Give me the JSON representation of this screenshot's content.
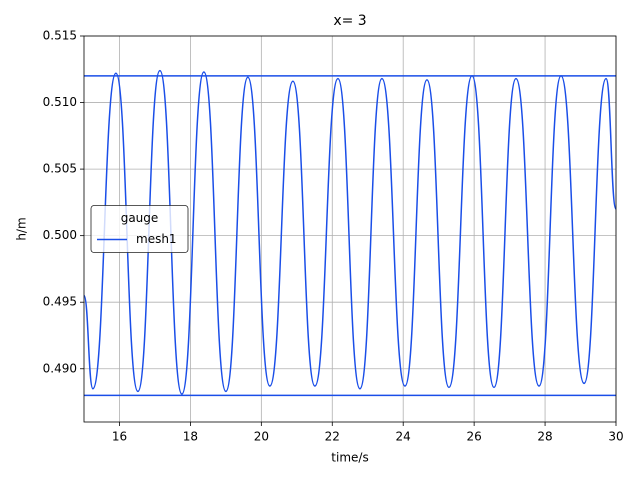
{
  "chart_data": {
    "type": "line",
    "title": "x= 3",
    "xlabel": "time/s",
    "ylabel": "h/m",
    "x": [
      15,
      15.25,
      15.9,
      16.52,
      17.14,
      17.76,
      18.38,
      19.0,
      19.62,
      20.24,
      20.89,
      21.51,
      22.16,
      22.78,
      23.4,
      24.05,
      24.67,
      25.29,
      25.94,
      26.56,
      27.18,
      27.83,
      28.45,
      29.1,
      29.72,
      30
    ],
    "series": [
      {
        "name": "mesh1",
        "color": "#1a4ee8",
        "values": [
          0.4955,
          0.4885,
          0.5122,
          0.4883,
          0.5124,
          0.4881,
          0.5123,
          0.4883,
          0.5119,
          0.4887,
          0.5116,
          0.4887,
          0.5118,
          0.4885,
          0.5118,
          0.4887,
          0.5117,
          0.4886,
          0.512,
          0.4886,
          0.5118,
          0.4887,
          0.512,
          0.4889,
          0.5118,
          0.502
        ]
      }
    ],
    "hlines": [
      0.512,
      0.488
    ],
    "xlim": [
      15,
      30
    ],
    "xticks": [
      16,
      18,
      20,
      22,
      24,
      26,
      28,
      30
    ],
    "ylim": [
      0.486,
      0.515
    ],
    "yticks": [
      {
        "value": 0.49,
        "label": "0.490"
      },
      0.495,
      {
        "value": 0.5,
        "label": "0.500"
      },
      0.505,
      {
        "value": 0.51,
        "label": "0.510"
      },
      0.515
    ],
    "grid": true,
    "legend_title": "gauge",
    "legend_loc": "center left"
  }
}
